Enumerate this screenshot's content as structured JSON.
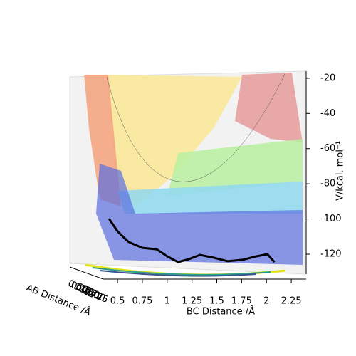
{
  "chart_data": {
    "type": "line",
    "x_label": "BC Distance /Å",
    "y_label": "V/kcal. mol⁻¹",
    "depth_label": "AB Distance /Å",
    "depth_ticks": [
      "0.50",
      "0.75",
      "1.00",
      "1.25",
      "1.50",
      "1.75",
      "2.00",
      "2.25"
    ],
    "xlim": [
      0.356,
      2.4
    ],
    "xticks": [
      0.5,
      0.75,
      1.0,
      1.25,
      1.5,
      1.75,
      2.0,
      2.25
    ],
    "ylim": [
      -129.3,
      -16
    ],
    "yticks": [
      -20,
      -40,
      -60,
      -80,
      -100,
      -120
    ],
    "series": [
      {
        "color": "#000000",
        "x": [
          0.414,
          0.5,
          0.61,
          0.75,
          0.895,
          1.0,
          1.11,
          1.22,
          1.33,
          1.47,
          1.61,
          1.76,
          1.9,
          2.01,
          2.08
        ],
        "values": [
          -99.8,
          -107,
          -113,
          -116.4,
          -117.2,
          -121.2,
          -124.5,
          -122.8,
          -120.4,
          -122,
          -124,
          -123.2,
          -121.2,
          -120,
          -124.5
        ]
      }
    ]
  }
}
